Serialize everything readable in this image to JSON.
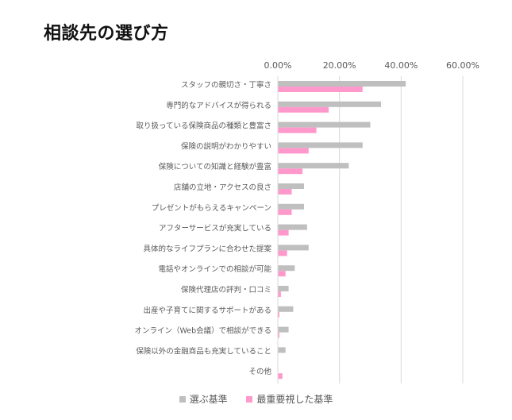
{
  "title": "相談先の選び方",
  "chart_data": {
    "type": "bar",
    "orientation": "horizontal",
    "categories": [
      "スタッフの親切さ・丁寧さ",
      "専門的なアドバイスが得られる",
      "取り扱っている保険商品の種類と豊富さ",
      "保険の説明がわかりやすい",
      "保険についての知識と経験が豊富",
      "店舗の立地・アクセスの良さ",
      "プレゼントがもらえるキャンペーン",
      "アフターサービスが充実している",
      "具体的なライフプランに合わせた提案",
      "電話やオンラインでの相談が可能",
      "保険代理店の評判・口コミ",
      "出産や子育てに関するサポートがある",
      "オンライン（Web会議）で相談ができる",
      "保険以外の金融商品も充実していること",
      "その他"
    ],
    "series": [
      {
        "name": "選ぶ基準",
        "color": "#bfbfbf",
        "values": [
          41.5,
          33.5,
          30.0,
          27.5,
          23.0,
          8.5,
          8.5,
          9.5,
          10.0,
          5.5,
          3.5,
          5.0,
          3.5,
          2.5,
          0.0
        ]
      },
      {
        "name": "最重要視した基準",
        "color": "#ff99cc",
        "values": [
          27.5,
          16.5,
          12.5,
          10.0,
          8.0,
          4.5,
          4.5,
          3.5,
          3.0,
          2.5,
          1.0,
          0.5,
          0.5,
          0.0,
          1.5
        ]
      }
    ],
    "xlim": [
      0,
      60
    ],
    "xticks": [
      "0.00%",
      "20.00%",
      "40.00%",
      "60.00%"
    ],
    "xtick_values": [
      0,
      20,
      40,
      60
    ],
    "grid": "vertical",
    "legend_position": "bottom"
  }
}
